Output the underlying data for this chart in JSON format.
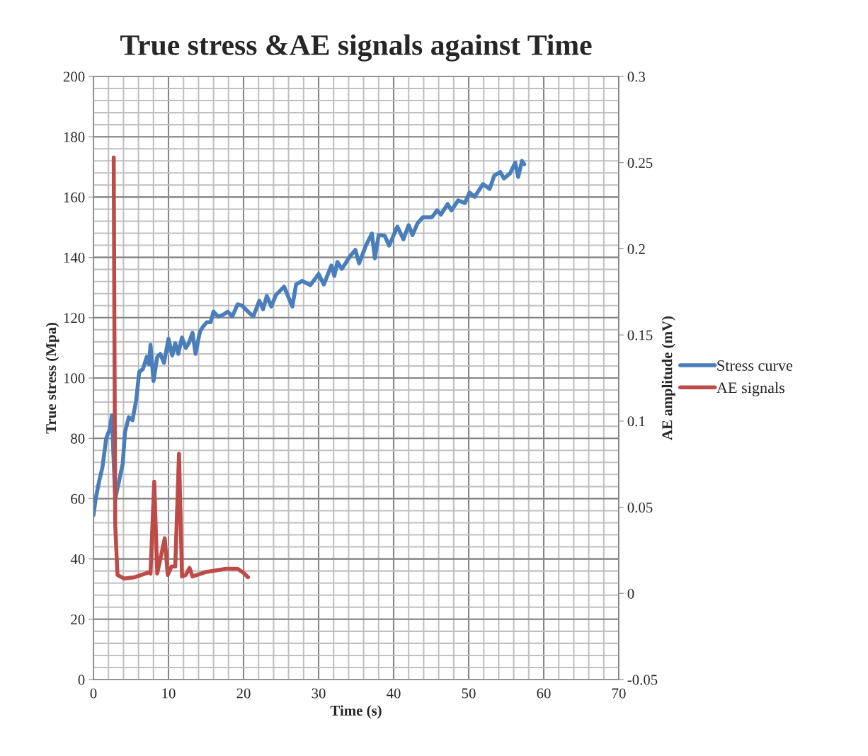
{
  "chart_data": {
    "type": "line",
    "title": "True stress &AE signals against Time",
    "xlabel": "Time (s)",
    "ylabel": "True stress (Mpa)",
    "y2label": "AE amplitude (mV)",
    "xlim": [
      0,
      70
    ],
    "xticks": [
      0,
      10,
      20,
      30,
      40,
      50,
      60,
      70
    ],
    "ylim": [
      0,
      200
    ],
    "yticks": [
      0,
      20,
      40,
      60,
      80,
      100,
      120,
      140,
      160,
      180,
      200
    ],
    "y2lim": [
      -0.05,
      0.3
    ],
    "y2ticks": [
      -0.05,
      0,
      0.05,
      0.1,
      0.15,
      0.2,
      0.25,
      0.3
    ],
    "grid": true,
    "legend": "right",
    "marker": "none",
    "line_style": "solid",
    "series": [
      {
        "name": "Stress curve",
        "color": "#4a7ebb",
        "x": [
          0,
          0.3,
          0.75,
          1.2,
          1.7,
          2.2,
          2.45,
          2.9,
          3.4,
          3.9,
          4.2,
          4.7,
          5.2,
          5.7,
          6.1,
          6.6,
          7.1,
          7.4,
          7.6,
          8.0,
          8.5,
          8.9,
          9.4,
          10,
          10.5,
          10.9,
          11.3,
          11.8,
          12.3,
          12.7,
          13.2,
          13.6,
          14.2,
          14.6,
          15.1,
          15.6,
          16,
          16.6,
          17.3,
          17.9,
          18.5,
          19.2,
          19.8,
          20.6,
          21.3,
          22.1,
          22.6,
          23.1,
          23.7,
          24.3,
          25.4,
          26.5,
          27,
          27.8,
          28.9,
          30,
          30.7,
          31.7,
          32.1,
          32.5,
          33.1,
          34.2,
          34.9,
          35.4,
          36.3,
          37.1,
          37.5,
          38,
          38.8,
          39.4,
          40.5,
          41.3,
          42,
          42.5,
          43.2,
          43.9,
          45.1,
          45.8,
          46.3,
          47.2,
          47.7,
          48.6,
          49.5,
          50.1,
          50.8,
          51.9,
          52.8,
          53.4,
          54.2,
          54.7,
          55.5,
          56.2,
          56.6,
          57.1,
          57.4
        ],
        "values": [
          54.5,
          60,
          65.7,
          70.4,
          80,
          83.3,
          87.6,
          60,
          65.7,
          71.6,
          82,
          87,
          86,
          92.7,
          102,
          103,
          107,
          104.5,
          111,
          99,
          107,
          108,
          105,
          113,
          107.5,
          111.5,
          108,
          113.4,
          110,
          111.5,
          115,
          108,
          115.5,
          117,
          118.5,
          118.5,
          122,
          120.4,
          121,
          122,
          120.4,
          124.4,
          124,
          122,
          120.4,
          125.6,
          122.8,
          127.2,
          123.7,
          127.5,
          130.3,
          123.7,
          131,
          132.2,
          130.8,
          134.5,
          131,
          137.3,
          133.8,
          138.5,
          136.2,
          140.4,
          142.5,
          138,
          143.9,
          147.9,
          139.7,
          147.4,
          147.2,
          143.9,
          150.2,
          146,
          150.7,
          147.4,
          151.4,
          153.3,
          153.3,
          155.6,
          154.2,
          157.7,
          155.6,
          158.9,
          158,
          161.5,
          160.1,
          164.3,
          162.7,
          167.1,
          168.3,
          166.2,
          167.8,
          171.4,
          166.7,
          172,
          170.9
        ]
      },
      {
        "name": "AE signals",
        "color": "#be4b48",
        "axis": "y2",
        "x": [
          2.7,
          2.9,
          3.2,
          4.1,
          5.5,
          6.9,
          7.4,
          7.6,
          8.1,
          8.5,
          9.5,
          9.9,
          10.4,
          10.9,
          11.4,
          11.8,
          12.3,
          12.8,
          13.2,
          14.9,
          17.7,
          19.2,
          19.9,
          20.6
        ],
        "values": [
          0.253,
          0.04,
          0.0107,
          0.0086,
          0.0094,
          0.0115,
          0.0123,
          0.0115,
          0.0648,
          0.0115,
          0.032,
          0.0107,
          0.0156,
          0.0156,
          0.081,
          0.0098,
          0.0107,
          0.0148,
          0.0098,
          0.0123,
          0.0143,
          0.0143,
          0.0123,
          0.0094
        ]
      }
    ]
  }
}
